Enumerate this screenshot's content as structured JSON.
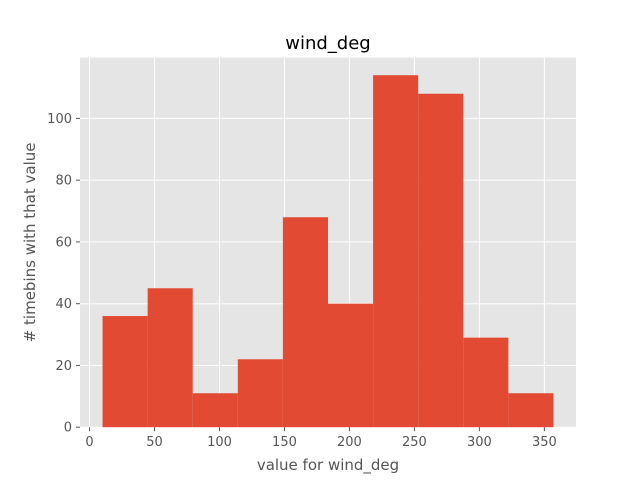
{
  "chart_data": {
    "type": "bar",
    "title": "wind_deg",
    "xlabel": "value for wind_deg",
    "ylabel": "# timebins with that value",
    "bins": [
      {
        "x0": 10,
        "x1": 44.7,
        "count": 36
      },
      {
        "x0": 44.7,
        "x1": 79.4,
        "count": 45
      },
      {
        "x0": 79.4,
        "x1": 114.1,
        "count": 11
      },
      {
        "x0": 114.1,
        "x1": 148.8,
        "count": 22
      },
      {
        "x0": 148.8,
        "x1": 183.5,
        "count": 68
      },
      {
        "x0": 183.5,
        "x1": 218.2,
        "count": 40
      },
      {
        "x0": 218.2,
        "x1": 252.9,
        "count": 114
      },
      {
        "x0": 252.9,
        "x1": 287.6,
        "count": 108
      },
      {
        "x0": 287.6,
        "x1": 322.3,
        "count": 29
      },
      {
        "x0": 322.3,
        "x1": 357,
        "count": 11
      }
    ],
    "xlim": [
      -7.35,
      374.35
    ],
    "ylim": [
      0,
      119.7
    ],
    "xticks": [
      0,
      50,
      100,
      150,
      200,
      250,
      300,
      350
    ],
    "yticks": [
      0,
      20,
      40,
      60,
      80,
      100
    ],
    "grid": true,
    "colors": {
      "bar": "#E24A33",
      "background": "#E5E5E5",
      "grid": "#FFFFFF"
    }
  }
}
